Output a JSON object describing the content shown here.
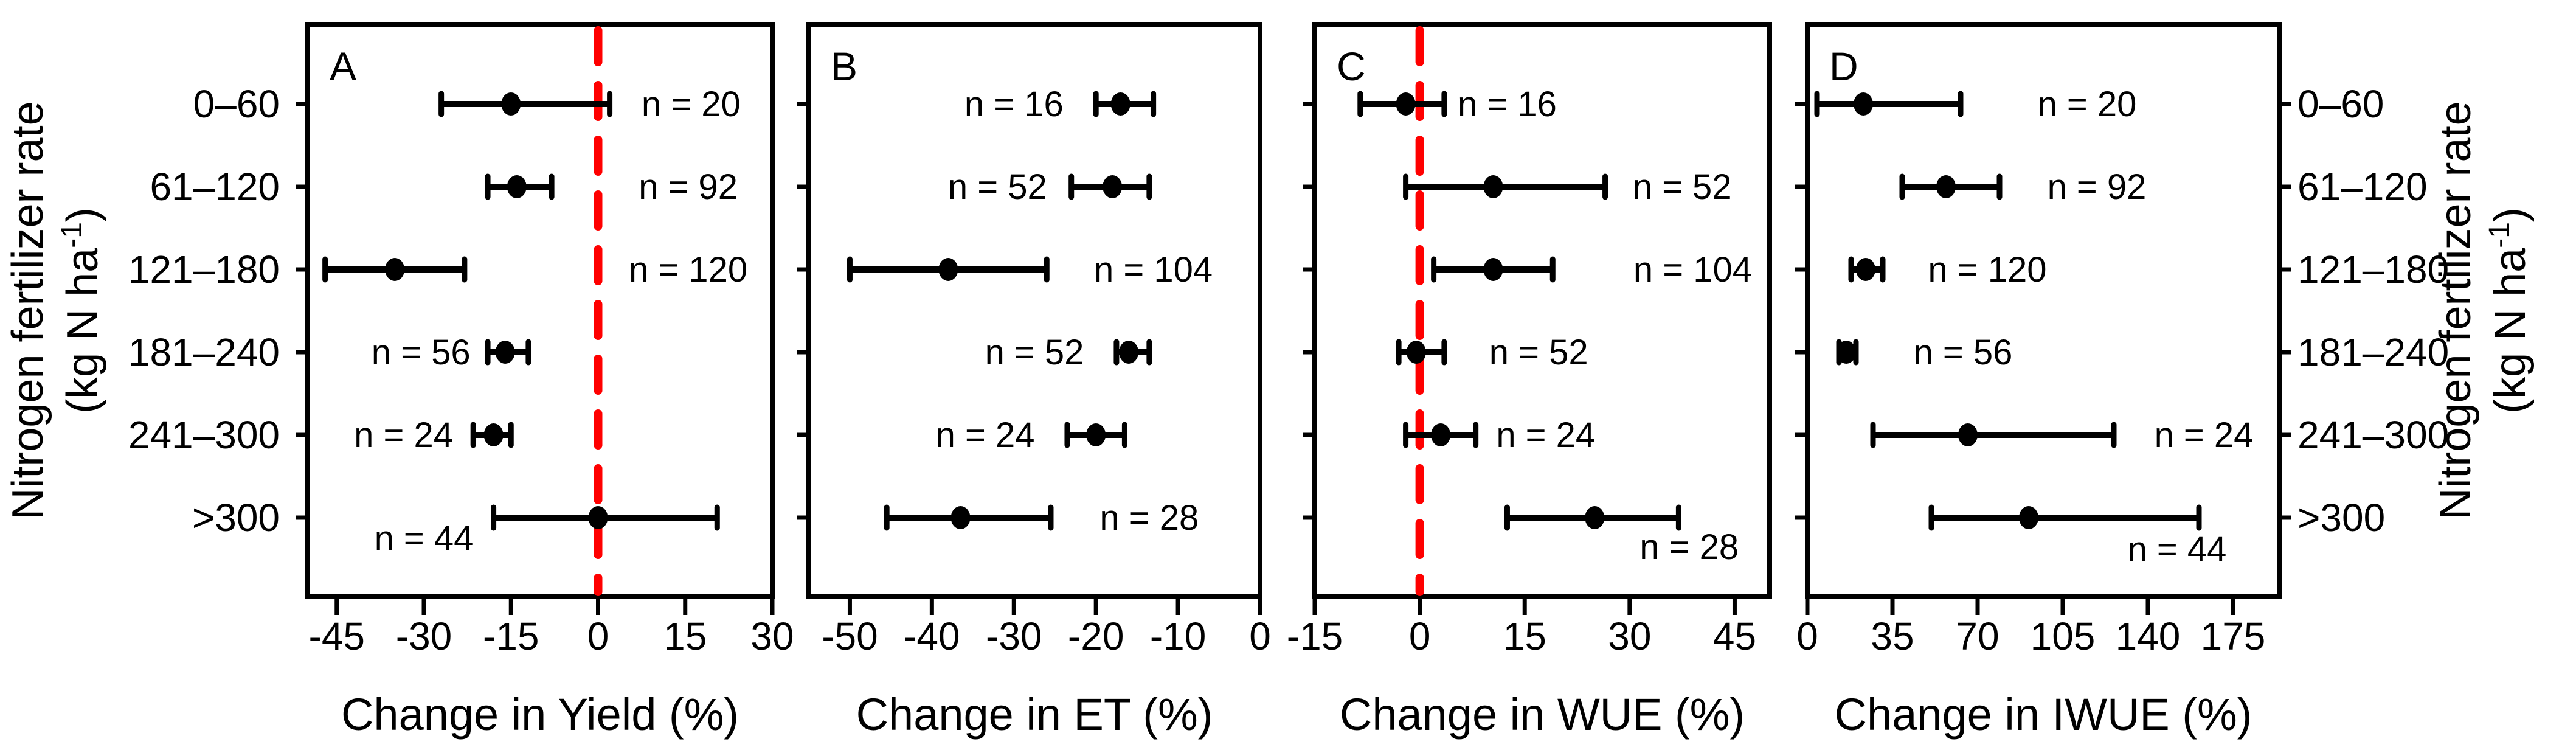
{
  "figure_background": "#ffffff",
  "chart_data": {
    "type": "scatter",
    "subtype": "horizontal-forest-plot-with-error-bars",
    "orientation": "horizontal",
    "grid": false,
    "marker_color": "#000000",
    "zero_line_color": "#ff0000",
    "zero_line_style": "dashed",
    "categories": [
      "0–60",
      "61–120",
      "121–180",
      "181–240",
      "241–300",
      ">300"
    ],
    "category_axis": {
      "title": "Nitrogen fertilizer rate",
      "units_pre": "(kg N ha",
      "units_sup": "-1",
      "units_post": ")",
      "shown_left": true,
      "shown_right": true
    },
    "panels": [
      {
        "label": "A",
        "xlabel": "Change in Yield (%)",
        "xlim": [
          -50,
          30
        ],
        "xticks": [
          -45,
          -30,
          -15,
          0,
          15,
          30
        ],
        "zero_line": true,
        "points": [
          {
            "category": "0–60",
            "mean": -15,
            "lo": -27,
            "hi": 2,
            "n": 20,
            "n_label": "n = 20",
            "n_label_x": 16,
            "n_label_dy": 0
          },
          {
            "category": "61–120",
            "mean": -14,
            "lo": -19,
            "hi": -8,
            "n": 92,
            "n_label": "n = 92",
            "n_label_x": 15.5,
            "n_label_dy": 0
          },
          {
            "category": "121–180",
            "mean": -35,
            "lo": -47,
            "hi": -23,
            "n": 120,
            "n_label": "n = 120",
            "n_label_x": 15.5,
            "n_label_dy": 0
          },
          {
            "category": "181–240",
            "mean": -16,
            "lo": -19,
            "hi": -12,
            "n": 56,
            "n_label": "n = 56",
            "n_label_x": -30.5,
            "n_label_dy": 0
          },
          {
            "category": "241–300",
            "mean": -18,
            "lo": -21.5,
            "hi": -15,
            "n": 24,
            "n_label": "n = 24",
            "n_label_x": -33.5,
            "n_label_dy": 0
          },
          {
            "category": ">300",
            "mean": 0,
            "lo": -18,
            "hi": 20.5,
            "n": 44,
            "n_label": "n = 44",
            "n_label_x": -30,
            "n_label_dy": 34
          }
        ]
      },
      {
        "label": "B",
        "xlabel": "Change in ET (%)",
        "xlim": [
          -55,
          0
        ],
        "xticks": [
          -50,
          -40,
          -30,
          -20,
          -10,
          0
        ],
        "zero_line": false,
        "points": [
          {
            "category": "0–60",
            "mean": -17,
            "lo": -20,
            "hi": -13,
            "n": 16,
            "n_label": "n = 16",
            "n_label_x": -30,
            "n_label_dy": 0
          },
          {
            "category": "61–120",
            "mean": -18,
            "lo": -23,
            "hi": -13.5,
            "n": 52,
            "n_label": "n = 52",
            "n_label_x": -32,
            "n_label_dy": 0
          },
          {
            "category": "121–180",
            "mean": -38,
            "lo": -50,
            "hi": -26,
            "n": 104,
            "n_label": "n = 104",
            "n_label_x": -13,
            "n_label_dy": 0
          },
          {
            "category": "181–240",
            "mean": -16,
            "lo": -17.5,
            "hi": -13.5,
            "n": 52,
            "n_label": "n = 52",
            "n_label_x": -27.5,
            "n_label_dy": 0
          },
          {
            "category": "241–300",
            "mean": -20,
            "lo": -23.5,
            "hi": -16.5,
            "n": 24,
            "n_label": "n = 24",
            "n_label_x": -33.5,
            "n_label_dy": 0
          },
          {
            "category": ">300",
            "mean": -36.5,
            "lo": -45.5,
            "hi": -25.5,
            "n": 28,
            "n_label": "n = 28",
            "n_label_x": -13.5,
            "n_label_dy": 0
          }
        ]
      },
      {
        "label": "C",
        "xlabel": "Change in WUE (%)",
        "xlim": [
          -15,
          50
        ],
        "xticks": [
          -15,
          0,
          15,
          30,
          45
        ],
        "zero_line": true,
        "points": [
          {
            "category": "0–60",
            "mean": -2,
            "lo": -8.5,
            "hi": 3.5,
            "n": 16,
            "n_label": "n = 16",
            "n_label_x": 12.5,
            "n_label_dy": 0
          },
          {
            "category": "61–120",
            "mean": 10.5,
            "lo": -2,
            "hi": 26.5,
            "n": 52,
            "n_label": "n = 52",
            "n_label_x": 37.5,
            "n_label_dy": 0
          },
          {
            "category": "121–180",
            "mean": 10.5,
            "lo": 2,
            "hi": 19,
            "n": 104,
            "n_label": "n = 104",
            "n_label_x": 39,
            "n_label_dy": 0
          },
          {
            "category": "181–240",
            "mean": -0.5,
            "lo": -3,
            "hi": 3.5,
            "n": 52,
            "n_label": "n = 52",
            "n_label_x": 17,
            "n_label_dy": 0
          },
          {
            "category": "241–300",
            "mean": 3,
            "lo": -2,
            "hi": 8,
            "n": 24,
            "n_label": "n = 24",
            "n_label_x": 18,
            "n_label_dy": 0
          },
          {
            "category": ">300",
            "mean": 25,
            "lo": 12.5,
            "hi": 37,
            "n": 28,
            "n_label": "n = 28",
            "n_label_x": 38.5,
            "n_label_dy": 48
          }
        ]
      },
      {
        "label": "D",
        "xlabel": "Change in IWUE (%)",
        "xlim": [
          0,
          194
        ],
        "xticks": [
          0,
          35,
          70,
          105,
          140,
          175
        ],
        "zero_line": false,
        "points": [
          {
            "category": "0–60",
            "mean": 23,
            "lo": 4,
            "hi": 63,
            "n": 20,
            "n_label": "n = 20",
            "n_label_x": 115,
            "n_label_dy": 0
          },
          {
            "category": "61–120",
            "mean": 57,
            "lo": 39,
            "hi": 79,
            "n": 92,
            "n_label": "n = 92",
            "n_label_x": 119,
            "n_label_dy": 0
          },
          {
            "category": "121–180",
            "mean": 24,
            "lo": 18,
            "hi": 31,
            "n": 120,
            "n_label": "n = 120",
            "n_label_x": 74,
            "n_label_dy": 0
          },
          {
            "category": "181–240",
            "mean": 16,
            "lo": 13,
            "hi": 20,
            "n": 56,
            "n_label": "n = 56",
            "n_label_x": 64,
            "n_label_dy": 0
          },
          {
            "category": "241–300",
            "mean": 66,
            "lo": 27,
            "hi": 126,
            "n": 24,
            "n_label": "n = 24",
            "n_label_x": 163,
            "n_label_dy": 0
          },
          {
            "category": ">300",
            "mean": 91,
            "lo": 51,
            "hi": 161,
            "n": 44,
            "n_label": "n = 44",
            "n_label_x": 152,
            "n_label_dy": 52
          }
        ]
      }
    ]
  }
}
